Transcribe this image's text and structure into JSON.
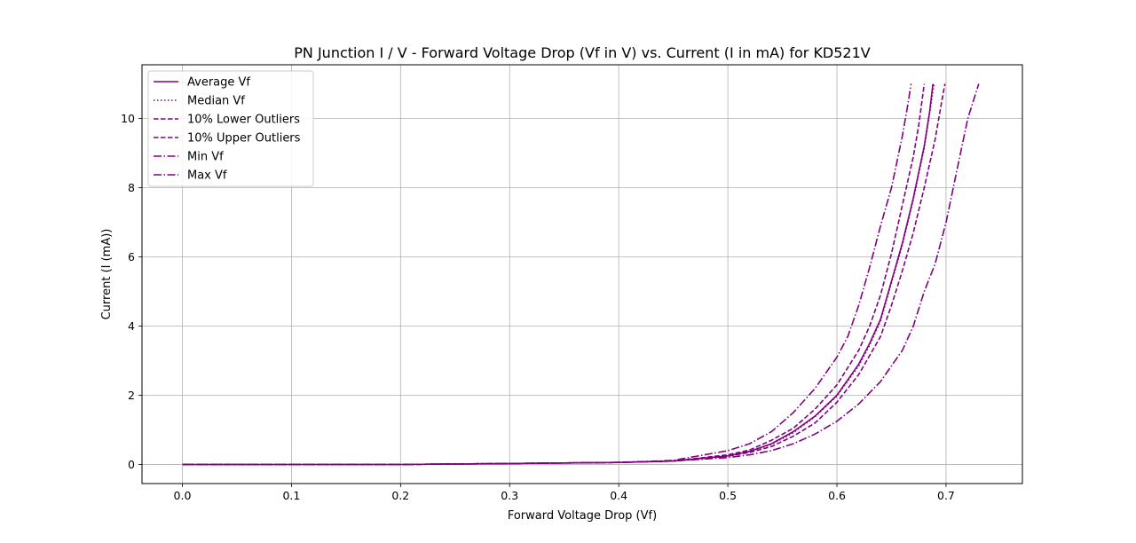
{
  "chart_data": {
    "type": "line",
    "title": "PN Junction I / V - Forward Voltage Drop (Vf in V) vs. Current (I in mA) for KD521V",
    "xlabel": "Forward Voltage Drop (Vf)",
    "ylabel": "Current (I (mA))",
    "xlim": [
      -0.037,
      0.77
    ],
    "ylim": [
      -0.55,
      11.55
    ],
    "xticks": [
      0.0,
      0.1,
      0.2,
      0.3,
      0.4,
      0.5,
      0.6,
      0.7
    ],
    "yticks": [
      0,
      2,
      4,
      6,
      8,
      10
    ],
    "xtick_labels": [
      "0.0",
      "0.1",
      "0.2",
      "0.3",
      "0.4",
      "0.5",
      "0.6",
      "0.7"
    ],
    "ytick_labels": [
      "0",
      "2",
      "4",
      "6",
      "8",
      "10"
    ],
    "grid": true,
    "legend_position": "upper-left",
    "color": "#800080",
    "series": [
      {
        "name": "Average Vf",
        "style": "solid",
        "x": [
          0.0,
          0.1,
          0.2,
          0.3,
          0.4,
          0.45,
          0.5,
          0.52,
          0.54,
          0.56,
          0.58,
          0.6,
          0.62,
          0.63,
          0.64,
          0.65,
          0.66,
          0.67,
          0.68,
          0.685,
          0.688
        ],
        "y": [
          0,
          0,
          0,
          0.03,
          0.06,
          0.1,
          0.25,
          0.38,
          0.6,
          0.95,
          1.4,
          2.0,
          2.9,
          3.5,
          4.2,
          5.3,
          6.4,
          7.7,
          9.2,
          10.2,
          11.0
        ]
      },
      {
        "name": "Median Vf",
        "style": "dotted",
        "x": [
          0.0,
          0.1,
          0.2,
          0.3,
          0.4,
          0.45,
          0.5,
          0.52,
          0.54,
          0.56,
          0.58,
          0.6,
          0.62,
          0.63,
          0.64,
          0.65,
          0.66,
          0.67,
          0.68,
          0.685,
          0.689
        ],
        "y": [
          0,
          0,
          0,
          0.03,
          0.06,
          0.1,
          0.25,
          0.37,
          0.58,
          0.92,
          1.38,
          1.98,
          2.85,
          3.45,
          4.15,
          5.25,
          6.35,
          7.65,
          9.15,
          10.15,
          11.0
        ]
      },
      {
        "name": "10% Lower Outliers",
        "style": "dashed",
        "x": [
          0.0,
          0.1,
          0.2,
          0.3,
          0.4,
          0.45,
          0.5,
          0.52,
          0.54,
          0.56,
          0.58,
          0.6,
          0.62,
          0.63,
          0.64,
          0.65,
          0.66,
          0.67,
          0.675,
          0.68
        ],
        "y": [
          0,
          0,
          0,
          0.03,
          0.06,
          0.1,
          0.28,
          0.42,
          0.7,
          1.05,
          1.6,
          2.3,
          3.3,
          4.0,
          4.9,
          6.1,
          7.5,
          8.9,
          9.8,
          11.0
        ]
      },
      {
        "name": "10% Upper Outliers",
        "style": "dashed",
        "x": [
          0.0,
          0.1,
          0.2,
          0.3,
          0.4,
          0.45,
          0.5,
          0.52,
          0.54,
          0.56,
          0.58,
          0.6,
          0.62,
          0.64,
          0.65,
          0.66,
          0.67,
          0.68,
          0.69,
          0.695,
          0.699
        ],
        "y": [
          0,
          0,
          0,
          0.03,
          0.06,
          0.1,
          0.24,
          0.35,
          0.52,
          0.82,
          1.2,
          1.8,
          2.6,
          3.7,
          4.6,
          5.6,
          6.7,
          8.0,
          9.4,
          10.3,
          11.0
        ]
      },
      {
        "name": "Min Vf",
        "style": "dashdot",
        "x": [
          0.0,
          0.1,
          0.2,
          0.3,
          0.4,
          0.45,
          0.5,
          0.52,
          0.54,
          0.56,
          0.58,
          0.6,
          0.61,
          0.62,
          0.63,
          0.64,
          0.65,
          0.66,
          0.665,
          0.668
        ],
        "y": [
          0,
          0,
          0,
          0.03,
          0.06,
          0.12,
          0.4,
          0.6,
          0.95,
          1.5,
          2.2,
          3.1,
          3.7,
          4.6,
          5.7,
          6.9,
          8.0,
          9.5,
          10.4,
          11.0
        ]
      },
      {
        "name": "Max Vf",
        "style": "dashdot",
        "x": [
          0.0,
          0.1,
          0.2,
          0.3,
          0.4,
          0.45,
          0.5,
          0.52,
          0.54,
          0.56,
          0.58,
          0.6,
          0.62,
          0.64,
          0.66,
          0.67,
          0.68,
          0.69,
          0.7,
          0.71,
          0.72,
          0.73
        ],
        "y": [
          0,
          0,
          0,
          0.03,
          0.06,
          0.1,
          0.2,
          0.28,
          0.4,
          0.6,
          0.88,
          1.25,
          1.75,
          2.4,
          3.3,
          4.0,
          5.0,
          5.8,
          7.0,
          8.5,
          10.0,
          11.0
        ]
      }
    ]
  }
}
